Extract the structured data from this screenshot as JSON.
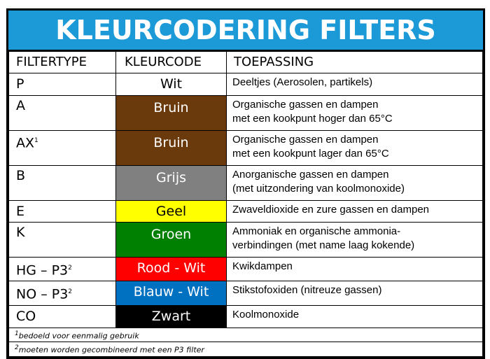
{
  "title": "KLEURCODERING FILTERS",
  "headers": [
    "FILTERTYPE",
    "KLEURCODE",
    "TOEPASSING"
  ],
  "rows": [
    {
      "type": "P",
      "sup": "",
      "code": "Wit",
      "bg": "#ffffff",
      "fg": "#000000",
      "use1": "Deeltjes (Aerosolen, partikels)",
      "use2": ""
    },
    {
      "type": "A",
      "sup": "",
      "code": "Bruin",
      "bg": "#6a3a0c",
      "fg": "#ffffff",
      "use1": "Organische gassen en dampen",
      "use2": "met een kookpunt hoger dan 65°C"
    },
    {
      "type": "AX",
      "sup": "1",
      "code": "Bruin",
      "bg": "#6a3a0c",
      "fg": "#ffffff",
      "use1": "Organische gassen en dampen",
      "use2": "met een kookpunt lager dan 65°C"
    },
    {
      "type": "B",
      "sup": "",
      "code": "Grijs",
      "bg": "#808080",
      "fg": "#ffffff",
      "use1": "Anorganische gassen en dampen",
      "use2": "(met uitzondering van koolmonoxide)"
    },
    {
      "type": "E",
      "sup": "",
      "code": "Geel",
      "bg": "#ffff00",
      "fg": "#000000",
      "use1": "Zwaveldioxide en zure gassen en dampen",
      "use2": ""
    },
    {
      "type": "K",
      "sup": "",
      "code": "Groen",
      "bg": "#008000",
      "fg": "#ffffff",
      "use1": "Ammoniak en organische ammonia-",
      "use2": "verbindingen (met name laag kokende)"
    },
    {
      "type": "HG – P3",
      "sup": "2",
      "code": "Rood - Wit",
      "bg": "#ff0000",
      "fg": "#ffffff",
      "use1": "Kwikdampen",
      "use2": ""
    },
    {
      "type": "NO – P3",
      "sup": "2",
      "code": "Blauw - Wit",
      "bg": "#0070c0",
      "fg": "#ffffff",
      "use1": "Stikstofoxiden (nitreuze gassen)",
      "use2": ""
    },
    {
      "type": "CO",
      "sup": "",
      "code": "Zwart",
      "bg": "#000000",
      "fg": "#ffffff",
      "use1": "Koolmonoxide",
      "use2": ""
    }
  ],
  "footnotes": [
    {
      "mark": "1",
      "text": "bedoeld voor eenmalig gebruik"
    },
    {
      "mark": "2",
      "text": "moeten worden gecombineerd met een P3 filter"
    }
  ]
}
